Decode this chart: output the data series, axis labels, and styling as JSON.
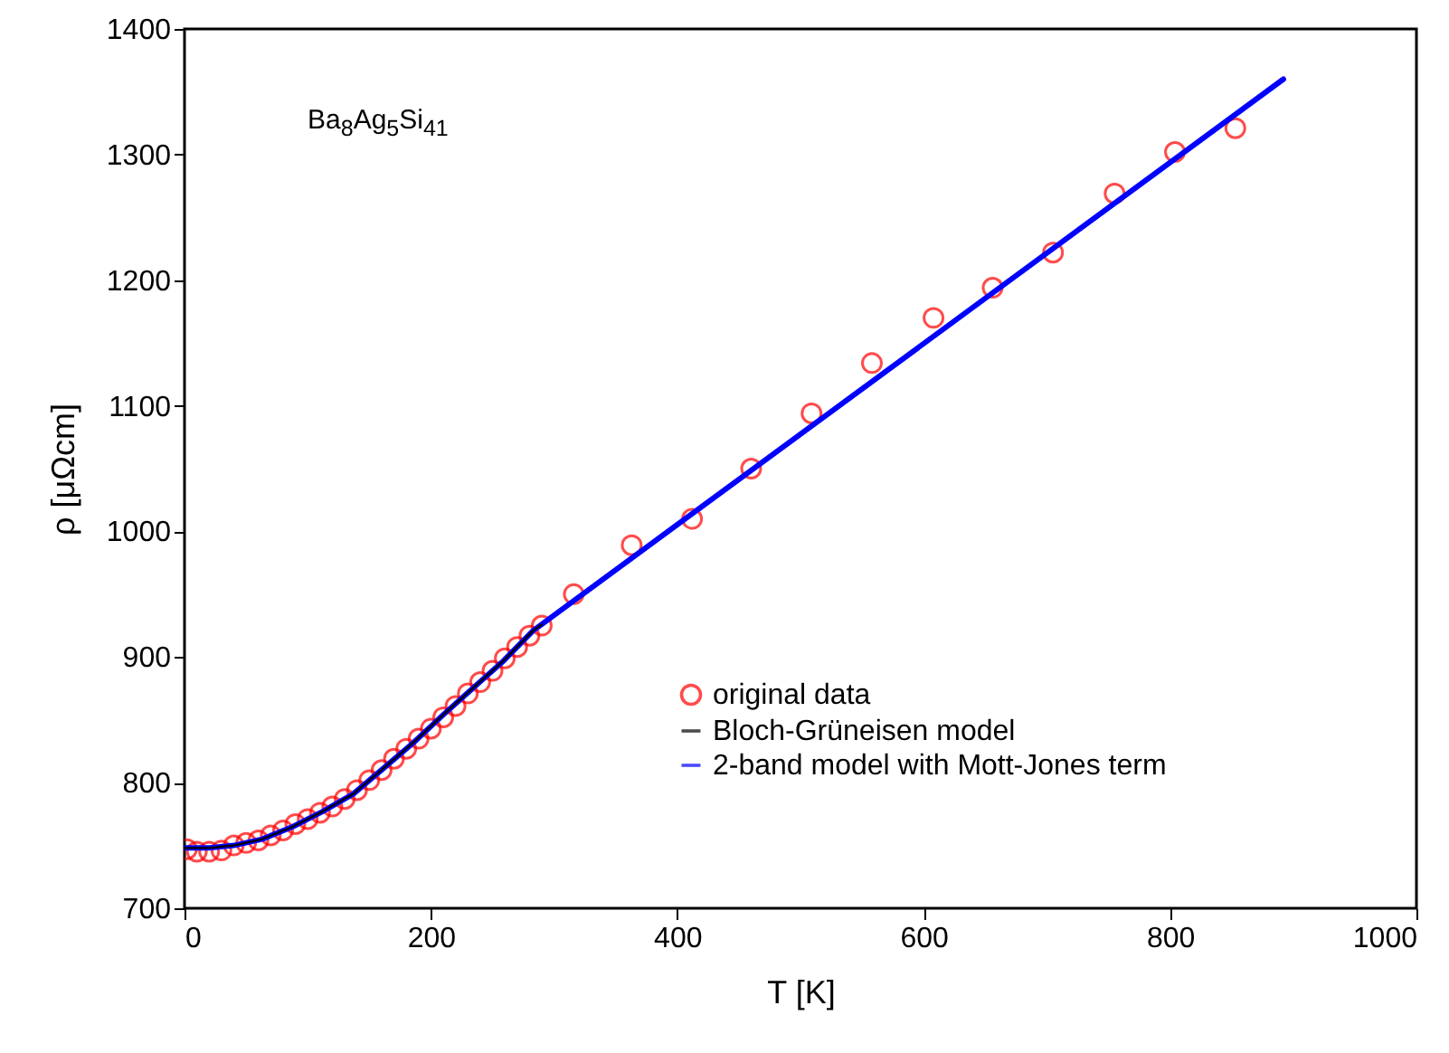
{
  "chart_data": {
    "type": "line",
    "xlabel": "T [K]",
    "ylabel": "ρ [μΩcm]",
    "annotations": [
      "Ba$_{8}$Ag$_{5}$Si$_{41}$"
    ],
    "xlim": [
      0,
      1000
    ],
    "ylim": [
      700,
      1400
    ],
    "xticks": [
      0,
      200,
      400,
      600,
      800,
      1000
    ],
    "yticks": [
      700,
      800,
      900,
      1000,
      1100,
      1200,
      1300,
      1400
    ],
    "grid": false,
    "legend": "bottom right",
    "series": [
      {
        "name": "original data",
        "type": "scatter",
        "marker": "circle",
        "color": "#ff0000",
        "x": [
          2,
          10,
          20,
          30,
          40,
          50,
          60,
          70,
          80,
          90,
          100,
          110,
          120,
          130,
          140,
          150,
          160,
          170,
          180,
          190,
          200,
          210,
          220,
          230,
          240,
          250,
          260,
          270,
          280,
          290,
          316,
          363,
          412,
          460,
          509,
          558,
          608,
          656,
          705,
          755,
          804,
          853
        ],
        "values": [
          747,
          745,
          745,
          746,
          750,
          752,
          754,
          758,
          762,
          767,
          771,
          776,
          781,
          787,
          794,
          802,
          810,
          819,
          827,
          835,
          843,
          852,
          861,
          871,
          880,
          889,
          899,
          908,
          917,
          925,
          950,
          989,
          1010,
          1050,
          1094,
          1134,
          1170,
          1194,
          1222,
          1269,
          1302,
          1321
        ]
      },
      {
        "name": "Bloch-Grüneisen model",
        "line_style": "solid",
        "color": "#000000",
        "x": [
          0,
          20,
          40,
          63,
          88,
          112,
          137,
          161,
          186,
          210,
          235,
          259,
          283,
          290
        ],
        "values": [
          748,
          748,
          750,
          755,
          765,
          777,
          791,
          811,
          832,
          854,
          876,
          897,
          921,
          926
        ]
      },
      {
        "name": "2-band model with Mott-Jones term",
        "line_style": "solid",
        "color": "#0000ff",
        "x": [
          0,
          20,
          40,
          63,
          88,
          112,
          137,
          161,
          186,
          210,
          235,
          259,
          283,
          892
        ],
        "values": [
          748,
          748,
          750,
          755,
          765,
          777,
          791,
          811,
          832,
          854,
          876,
          897,
          921,
          1360
        ]
      }
    ]
  }
}
